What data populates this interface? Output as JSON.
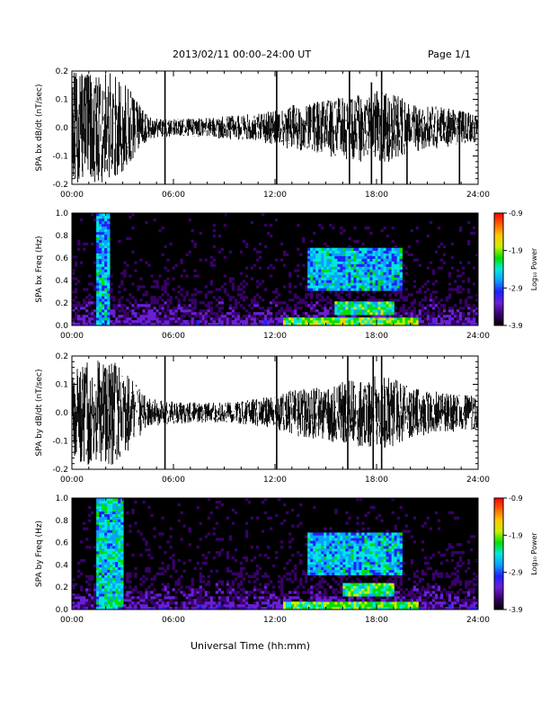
{
  "header": {
    "title": "2013/02/11  00:00–24:00 UT",
    "page": "Page 1/1"
  },
  "footer": {
    "xlabel": "Universal Time (hh:mm)"
  },
  "colors": {
    "trace": "#000000",
    "spectrogram_background": "#000000",
    "colormap": [
      "#000000",
      "#3a006a",
      "#6a1fd6",
      "#2020ff",
      "#0aa0ff",
      "#00e8e0",
      "#00e000",
      "#c8f000",
      "#ffc800",
      "#ff6000",
      "#ff0000"
    ]
  },
  "chart_data": [
    {
      "type": "line",
      "ylabel": "SPA bx dB/dt (nT/sec)",
      "xlim": [
        0,
        24
      ],
      "ylim": [
        -0.2,
        0.2
      ],
      "xticks": [
        "00:00",
        "06:00",
        "12:00",
        "18:00",
        "24:00"
      ],
      "yticks": [
        "-0.2",
        "-0.1",
        "0.0",
        "0.1",
        "0.2"
      ],
      "envelope": {
        "hours": [
          0,
          1,
          2,
          3,
          3.8,
          4.5,
          6,
          8,
          10,
          12,
          13,
          15,
          17,
          18,
          19,
          20,
          22,
          24
        ],
        "amplitude": [
          0.2,
          0.2,
          0.2,
          0.17,
          0.1,
          0.04,
          0.03,
          0.035,
          0.045,
          0.06,
          0.08,
          0.1,
          0.12,
          0.13,
          0.12,
          0.09,
          0.07,
          0.05
        ]
      },
      "spikes": [
        {
          "hour": 5.5,
          "low": -0.2,
          "high": 0.2
        },
        {
          "hour": 12.1,
          "low": -0.2,
          "high": 0.2
        },
        {
          "hour": 16.4,
          "low": -0.2,
          "high": 0.2
        },
        {
          "hour": 17.7,
          "low": -0.2,
          "high": 0.16
        },
        {
          "hour": 18.3,
          "low": -0.2,
          "high": 0.2
        },
        {
          "hour": 19.8,
          "low": -0.2,
          "high": 0.05
        },
        {
          "hour": 22.9,
          "low": -0.2,
          "high": 0.05
        }
      ]
    },
    {
      "type": "heatmap",
      "ylabel": "SPA bx Freq (Hz)",
      "xlim": [
        0,
        24
      ],
      "ylim": [
        0,
        1.0
      ],
      "xticks": [
        "00:00",
        "06:00",
        "12:00",
        "18:00",
        "24:00"
      ],
      "yticks": [
        "0.0",
        "0.2",
        "0.4",
        "0.6",
        "0.8",
        "1.0"
      ],
      "colorbar": {
        "label": "Log₁₀ Power",
        "min": -3.9,
        "max": -0.9,
        "ticks": [
          "-0.9",
          "-1.9",
          "-2.9",
          "-3.9"
        ]
      },
      "features": [
        {
          "hours": [
            1.5,
            2.2
          ],
          "freq": [
            0.0,
            1.0
          ],
          "level": -2.6
        },
        {
          "hours": [
            14.0,
            19.5
          ],
          "freq": [
            0.3,
            0.68
          ],
          "level": -2.6
        },
        {
          "hours": [
            15.5,
            19.0
          ],
          "freq": [
            0.1,
            0.22
          ],
          "level": -2.3
        },
        {
          "hours": [
            12.5,
            20.5
          ],
          "freq": [
            0.0,
            0.06
          ],
          "level": -2.0
        }
      ]
    },
    {
      "type": "line",
      "ylabel": "SPA by dB/dt (nT/sec)",
      "xlim": [
        0,
        24
      ],
      "ylim": [
        -0.2,
        0.2
      ],
      "xticks": [
        "00:00",
        "06:00",
        "12:00",
        "18:00",
        "24:00"
      ],
      "yticks": [
        "-0.2",
        "-0.1",
        "0.0",
        "0.1",
        "0.2"
      ],
      "envelope": {
        "hours": [
          0,
          1,
          2,
          3,
          3.8,
          4.5,
          6,
          8,
          10,
          12,
          13,
          15,
          17,
          18,
          19,
          20,
          22,
          24
        ],
        "amplitude": [
          0.16,
          0.19,
          0.2,
          0.16,
          0.1,
          0.05,
          0.04,
          0.035,
          0.04,
          0.06,
          0.08,
          0.1,
          0.12,
          0.13,
          0.12,
          0.09,
          0.07,
          0.06
        ]
      },
      "spikes": [
        {
          "hour": 5.5,
          "low": -0.2,
          "high": 0.2
        },
        {
          "hour": 12.1,
          "low": -0.2,
          "high": 0.2
        },
        {
          "hour": 16.3,
          "low": -0.2,
          "high": 0.2
        },
        {
          "hour": 17.8,
          "low": -0.2,
          "high": 0.2
        },
        {
          "hour": 18.3,
          "low": -0.2,
          "high": 0.2
        }
      ]
    },
    {
      "type": "heatmap",
      "ylabel": "SPA by Freq (Hz)",
      "xlim": [
        0,
        24
      ],
      "ylim": [
        0,
        1.0
      ],
      "xticks": [
        "00:00",
        "06:00",
        "12:00",
        "18:00",
        "24:00"
      ],
      "yticks": [
        "0.0",
        "0.2",
        "0.4",
        "0.6",
        "0.8",
        "1.0"
      ],
      "colorbar": {
        "label": "Log₁₀ Power",
        "min": -3.9,
        "max": -0.9,
        "ticks": [
          "-0.9",
          "-1.9",
          "-2.9",
          "-3.9"
        ]
      },
      "features": [
        {
          "hours": [
            1.5,
            3.0
          ],
          "freq": [
            0.0,
            1.0
          ],
          "level": -2.5
        },
        {
          "hours": [
            14.0,
            19.5
          ],
          "freq": [
            0.3,
            0.68
          ],
          "level": -2.6
        },
        {
          "hours": [
            16.0,
            19.0
          ],
          "freq": [
            0.12,
            0.24
          ],
          "level": -2.2
        },
        {
          "hours": [
            12.5,
            20.5
          ],
          "freq": [
            0.0,
            0.06
          ],
          "level": -2.1
        }
      ]
    }
  ]
}
